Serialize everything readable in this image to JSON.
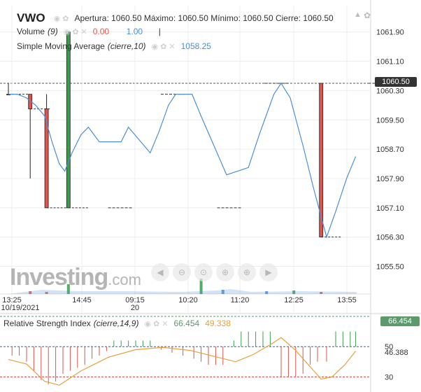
{
  "header": {
    "symbol": "VWO",
    "ohlc_text": "Apertura: 1060.50 Máximo: 1060.50 Mínimo: 1060.50 Cierre: 1060.50"
  },
  "volume_legend": {
    "label": "Volume",
    "param": "(9)",
    "value1": "0.00",
    "value2": "1.00",
    "color1": "#e0544d",
    "color2": "#4a8fd8"
  },
  "sma_legend": {
    "label": "Simple Moving Average",
    "param": "(cierre,10)",
    "value": "1058.25",
    "color": "#4a8fd8"
  },
  "rsi_legend": {
    "label": "Relative Strength Index",
    "param": "(cierre,14,9)",
    "value1": "66.454",
    "value2": "49.338",
    "color1": "#5b9a6b",
    "color2": "#e8a03a"
  },
  "current_price": "1060.50",
  "rsi_current": "66.454",
  "watermark": {
    "brand": "Investing",
    "suffix": ".com"
  },
  "colors": {
    "up": "#3a9d4e",
    "down": "#e0544d",
    "sma": "#4a8fd8",
    "rsi": "#e8a03a",
    "grid": "#ececec"
  },
  "toolbar_icons": [
    "scroll-left-icon",
    "zoom-out-icon",
    "reset-zoom-icon",
    "zoom-in-icon",
    "zoom-in-plus-icon",
    "scroll-right-icon"
  ],
  "chart_data": {
    "type": "candlestick",
    "price_axis": {
      "ticks": [
        "1061.90",
        "1061.10",
        "1060.30",
        "1059.50",
        "1058.70",
        "1057.90",
        "1057.10",
        "1056.30",
        "1055.50"
      ],
      "range": [
        1055.3,
        1062.2
      ]
    },
    "time_axis": {
      "labels": [
        {
          "t": "13:25",
          "sub": "10/19/2021"
        },
        {
          "t": "14:45",
          "sub": ""
        },
        {
          "t": "09:15",
          "sub": "20"
        },
        {
          "t": "10:20",
          "sub": ""
        },
        {
          "t": "11:20",
          "sub": ""
        },
        {
          "t": "12:25",
          "sub": ""
        },
        {
          "t": "13:55",
          "sub": ""
        }
      ]
    },
    "candles": [
      {
        "x": 0,
        "open": 1060.2,
        "high": 1060.5,
        "low": 1060.2,
        "close": 1060.2
      },
      {
        "x": 12,
        "open": 1060.2,
        "high": 1060.2,
        "low": 1057.9,
        "close": 1059.8
      },
      {
        "x": 21,
        "open": 1059.8,
        "high": 1060.2,
        "low": 1057.1,
        "close": 1057.1
      },
      {
        "x": 33,
        "open": 1057.1,
        "high": 1061.9,
        "low": 1057.1,
        "close": 1061.9
      },
      {
        "x": 61,
        "open": 1057.1,
        "high": 1057.1,
        "low": 1057.1,
        "close": 1057.1
      },
      {
        "x": 90,
        "open": 1060.2,
        "high": 1060.2,
        "low": 1060.2,
        "close": 1060.2
      },
      {
        "x": 121,
        "open": 1057.1,
        "high": 1057.1,
        "low": 1057.1,
        "close": 1057.1
      },
      {
        "x": 147,
        "open": 1060.5,
        "high": 1060.5,
        "low": 1060.5,
        "close": 1060.5
      },
      {
        "x": 172,
        "open": 1060.5,
        "high": 1060.5,
        "low": 1056.3,
        "close": 1056.3
      },
      {
        "x": 204,
        "open": 1060.5,
        "high": 1060.5,
        "low": 1060.5,
        "close": 1060.5
      }
    ],
    "sma_series": [
      [
        0,
        1060.2
      ],
      [
        5,
        1060.2
      ],
      [
        10,
        1060.1
      ],
      [
        15,
        1059.9
      ],
      [
        20,
        1059.6
      ],
      [
        24,
        1058.9
      ],
      [
        28,
        1058.3
      ],
      [
        31,
        1058.1
      ],
      [
        35,
        1058.6
      ],
      [
        40,
        1059.1
      ],
      [
        44,
        1059.3
      ],
      [
        50,
        1058.9
      ],
      [
        56,
        1058.9
      ],
      [
        62,
        1058.9
      ],
      [
        66,
        1059.3
      ],
      [
        72,
        1058.95
      ],
      [
        78,
        1058.6
      ],
      [
        83,
        1059.2
      ],
      [
        88,
        1059.9
      ],
      [
        92,
        1060.2
      ],
      [
        96,
        1060.2
      ],
      [
        101,
        1060.2
      ],
      [
        106,
        1059.6
      ],
      [
        113,
        1058.8
      ],
      [
        120,
        1058.0
      ],
      [
        126,
        1058.1
      ],
      [
        132,
        1058.2
      ],
      [
        138,
        1059.1
      ],
      [
        146,
        1060.2
      ],
      [
        150,
        1060.5
      ],
      [
        155,
        1060.1
      ],
      [
        162,
        1058.8
      ],
      [
        168,
        1057.6
      ],
      [
        175,
        1056.3
      ],
      [
        180,
        1057.0
      ],
      [
        186,
        1057.9
      ],
      [
        191,
        1058.5
      ]
    ],
    "rsi": {
      "ticks": [
        "50",
        "46.388",
        "30"
      ],
      "range": [
        20,
        70
      ],
      "series": [
        [
          0,
          41.5
        ],
        [
          10,
          38.5
        ],
        [
          20,
          27
        ],
        [
          28,
          24.5
        ],
        [
          40,
          34
        ],
        [
          55,
          43
        ],
        [
          70,
          48
        ],
        [
          85,
          49.5
        ],
        [
          100,
          47.5
        ],
        [
          115,
          43
        ],
        [
          125,
          40
        ],
        [
          135,
          45
        ],
        [
          145,
          52
        ],
        [
          150,
          56
        ],
        [
          158,
          47.5
        ],
        [
          165,
          38
        ],
        [
          172,
          28.5
        ],
        [
          178,
          30
        ],
        [
          185,
          38
        ],
        [
          191,
          47
        ]
      ]
    }
  }
}
